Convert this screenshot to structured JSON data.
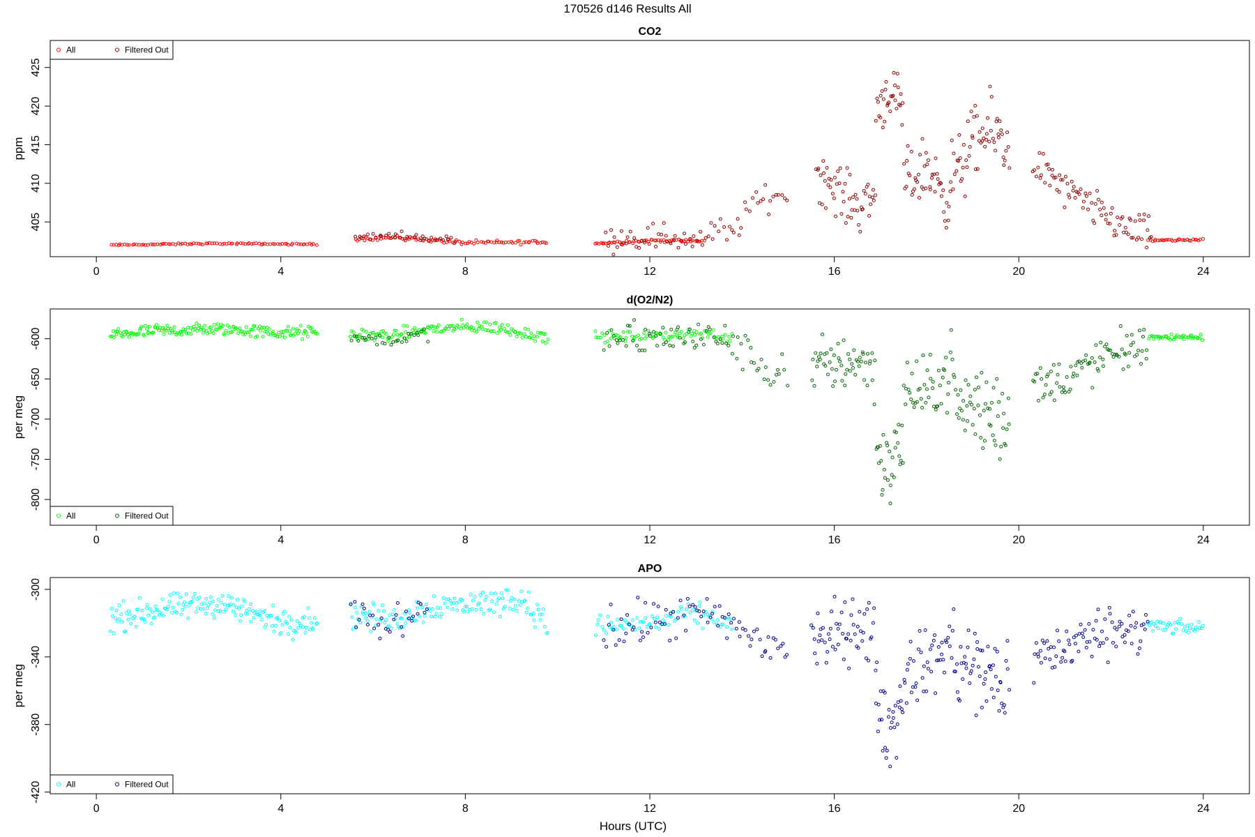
{
  "page_title": "170526   d146   Results All",
  "x_axis_label": "Hours (UTC)",
  "chart_data": [
    {
      "type": "scatter",
      "title": "CO2",
      "xlabel": "",
      "ylabel": "ppm",
      "xlim": [
        -1,
        25
      ],
      "ylim": [
        400.5,
        428.5
      ],
      "xticks": [
        0,
        4,
        8,
        12,
        16,
        20,
        24
      ],
      "yticks": [
        405,
        410,
        415,
        420,
        425
      ],
      "legend_position": "top-left",
      "series": [
        {
          "name": "All",
          "color": "#ff0000",
          "segments": [
            {
              "start": 0.3,
              "end": 4.8,
              "n": 90,
              "base": [
                [
                  0.3,
                  402.0
                ],
                [
                  2.5,
                  402.2
                ],
                [
                  4.8,
                  402.1
                ]
              ],
              "spread": 0.15
            },
            {
              "start": 5.6,
              "end": 9.8,
              "n": 90,
              "base": [
                [
                  5.6,
                  402.8
                ],
                [
                  6.5,
                  403.0
                ],
                [
                  8.0,
                  402.3
                ],
                [
                  9.8,
                  402.4
                ]
              ],
              "spread": 0.4
            },
            {
              "start": 10.8,
              "end": 13.2,
              "n": 60,
              "base": [
                [
                  10.8,
                  402.2
                ],
                [
                  12.0,
                  402.6
                ],
                [
                  13.2,
                  402.5
                ]
              ],
              "spread": 0.3
            },
            {
              "start": 22.8,
              "end": 24.0,
              "n": 30,
              "base": [
                [
                  22.8,
                  402.6
                ],
                [
                  24.0,
                  402.7
                ]
              ],
              "spread": 0.2
            }
          ]
        },
        {
          "name": "Filtered Out",
          "color": "#8b0000",
          "segments": [
            {
              "start": 5.6,
              "end": 7.8,
              "n": 35,
              "base": [
                [
                  5.6,
                  403.0
                ],
                [
                  6.5,
                  403.3
                ],
                [
                  7.8,
                  402.6
                ]
              ],
              "spread": 0.7
            },
            {
              "start": 11.0,
              "end": 15.0,
              "n": 70,
              "base": [
                [
                  11.0,
                  403.0
                ],
                [
                  12.0,
                  403.2
                ],
                [
                  13.0,
                  402.8
                ],
                [
                  13.8,
                  404.0
                ],
                [
                  14.3,
                  407.5
                ],
                [
                  15.0,
                  409.0
                ]
              ],
              "spread": 2.8
            },
            {
              "start": 15.6,
              "end": 16.9,
              "n": 55,
              "base": [
                [
                  15.6,
                  411.5
                ],
                [
                  16.0,
                  409.5
                ],
                [
                  16.5,
                  407.0
                ],
                [
                  16.9,
                  408.5
                ]
              ],
              "spread": 5.0
            },
            {
              "start": 16.9,
              "end": 17.5,
              "n": 30,
              "base": [
                [
                  16.9,
                  419.5
                ],
                [
                  17.2,
                  422.0
                ],
                [
                  17.5,
                  419.0
                ]
              ],
              "spread": 5.0
            },
            {
              "start": 17.5,
              "end": 18.5,
              "n": 45,
              "base": [
                [
                  17.5,
                  410.0
                ],
                [
                  18.0,
                  412.0
                ],
                [
                  18.5,
                  408.0
                ]
              ],
              "spread": 6.0
            },
            {
              "start": 18.5,
              "end": 19.8,
              "n": 60,
              "base": [
                [
                  18.5,
                  410.0
                ],
                [
                  19.0,
                  415.0
                ],
                [
                  19.5,
                  417.0
                ],
                [
                  19.8,
                  414.0
                ]
              ],
              "spread": 7.0
            },
            {
              "start": 20.3,
              "end": 22.9,
              "n": 85,
              "base": [
                [
                  20.3,
                  413.0
                ],
                [
                  21.0,
                  409.0
                ],
                [
                  21.8,
                  406.0
                ],
                [
                  22.4,
                  404.0
                ],
                [
                  22.9,
                  403.0
                ]
              ],
              "spread": 3.5
            }
          ]
        }
      ]
    },
    {
      "type": "scatter",
      "title": "d(O2/N2)",
      "xlabel": "",
      "ylabel": "per meg",
      "xlim": [
        -1,
        25
      ],
      "ylim": [
        -832,
        -563
      ],
      "xticks": [
        0,
        4,
        8,
        12,
        16,
        20,
        24
      ],
      "yticks": [
        -600,
        -650,
        -700,
        -750,
        -800
      ],
      "legend_position": "bottom-left",
      "series": [
        {
          "name": "All",
          "color": "#00ff00",
          "segments": [
            {
              "start": 0.3,
              "end": 4.8,
              "n": 180,
              "base": [
                [
                  0.3,
                  -595
                ],
                [
                  1.5,
                  -590
                ],
                [
                  2.8,
                  -588
                ],
                [
                  4.0,
                  -593
                ],
                [
                  4.8,
                  -592
                ]
              ],
              "spread": 12
            },
            {
              "start": 5.5,
              "end": 9.8,
              "n": 150,
              "base": [
                [
                  5.5,
                  -595
                ],
                [
                  6.5,
                  -596
                ],
                [
                  7.2,
                  -588
                ],
                [
                  8.5,
                  -585
                ],
                [
                  9.8,
                  -598
                ]
              ],
              "spread": 12
            },
            {
              "start": 10.8,
              "end": 13.8,
              "n": 80,
              "base": [
                [
                  10.8,
                  -598
                ],
                [
                  12.0,
                  -597
                ],
                [
                  13.0,
                  -593
                ],
                [
                  13.8,
                  -598
                ]
              ],
              "spread": 10
            },
            {
              "start": 22.8,
              "end": 24.0,
              "n": 40,
              "base": [
                [
                  22.8,
                  -597
                ],
                [
                  24.0,
                  -598
                ]
              ],
              "spread": 7
            }
          ]
        },
        {
          "name": "Filtered Out",
          "color": "#006400",
          "segments": [
            {
              "start": 5.5,
              "end": 7.2,
              "n": 30,
              "base": [
                [
                  5.5,
                  -598
                ],
                [
                  6.3,
                  -602
                ],
                [
                  7.2,
                  -595
                ]
              ],
              "spread": 12
            },
            {
              "start": 11.0,
              "end": 15.0,
              "n": 80,
              "base": [
                [
                  11.0,
                  -605
                ],
                [
                  12.0,
                  -600
                ],
                [
                  13.0,
                  -597
                ],
                [
                  13.8,
                  -605
                ],
                [
                  14.5,
                  -640
                ],
                [
                  15.0,
                  -640
                ]
              ],
              "spread": 35
            },
            {
              "start": 15.5,
              "end": 16.9,
              "n": 55,
              "base": [
                [
                  15.5,
                  -640
                ],
                [
                  16.0,
                  -630
                ],
                [
                  16.5,
                  -625
                ],
                [
                  16.9,
                  -640
                ]
              ],
              "spread": 55
            },
            {
              "start": 16.9,
              "end": 17.5,
              "n": 30,
              "base": [
                [
                  16.9,
                  -730
                ],
                [
                  17.2,
                  -770
                ],
                [
                  17.5,
                  -720
                ]
              ],
              "spread": 75
            },
            {
              "start": 17.5,
              "end": 18.6,
              "n": 45,
              "base": [
                [
                  17.5,
                  -660
                ],
                [
                  18.0,
                  -670
                ],
                [
                  18.6,
                  -630
                ]
              ],
              "spread": 60
            },
            {
              "start": 18.6,
              "end": 19.8,
              "n": 55,
              "base": [
                [
                  18.6,
                  -680
                ],
                [
                  19.2,
                  -690
                ],
                [
                  19.8,
                  -690
                ]
              ],
              "spread": 95
            },
            {
              "start": 20.3,
              "end": 22.8,
              "n": 85,
              "base": [
                [
                  20.3,
                  -660
                ],
                [
                  21.0,
                  -650
                ],
                [
                  21.8,
                  -625
                ],
                [
                  22.8,
                  -605
                ]
              ],
              "spread": 40
            }
          ]
        }
      ]
    },
    {
      "type": "scatter",
      "title": "APO",
      "xlabel": "",
      "ylabel": "per meg",
      "xlim": [
        -1,
        25
      ],
      "ylim": [
        -421,
        -293
      ],
      "xticks": [
        0,
        4,
        8,
        12,
        16,
        20,
        24
      ],
      "yticks": [
        -300,
        -340,
        -380,
        -420
      ],
      "legend_position": "bottom-left",
      "series": [
        {
          "name": "All",
          "color": "#00ffff",
          "segments": [
            {
              "start": 0.3,
              "end": 4.8,
              "n": 180,
              "base": [
                [
                  0.3,
                  -318
                ],
                [
                  1.4,
                  -312
                ],
                [
                  2.7,
                  -308
                ],
                [
                  4.0,
                  -320
                ],
                [
                  4.8,
                  -318
                ]
              ],
              "spread": 12
            },
            {
              "start": 5.5,
              "end": 9.8,
              "n": 150,
              "base": [
                [
                  5.5,
                  -315
                ],
                [
                  6.5,
                  -318
                ],
                [
                  7.2,
                  -310
                ],
                [
                  8.5,
                  -308
                ],
                [
                  9.2,
                  -305
                ],
                [
                  9.8,
                  -322
                ]
              ],
              "spread": 12
            },
            {
              "start": 10.8,
              "end": 13.8,
              "n": 80,
              "base": [
                [
                  10.8,
                  -322
                ],
                [
                  12.0,
                  -320
                ],
                [
                  13.0,
                  -315
                ],
                [
                  13.8,
                  -320
                ]
              ],
              "spread": 10
            },
            {
              "start": 22.8,
              "end": 24.0,
              "n": 40,
              "base": [
                [
                  22.8,
                  -322
                ],
                [
                  24.0,
                  -323
                ]
              ],
              "spread": 6
            }
          ]
        },
        {
          "name": "Filtered Out",
          "color": "#00008b",
          "segments": [
            {
              "start": 5.5,
              "end": 7.2,
              "n": 30,
              "base": [
                [
                  5.5,
                  -312
                ],
                [
                  6.3,
                  -322
                ],
                [
                  7.2,
                  -308
                ]
              ],
              "spread": 14
            },
            {
              "start": 11.0,
              "end": 15.0,
              "n": 80,
              "base": [
                [
                  11.0,
                  -325
                ],
                [
                  12.0,
                  -320
                ],
                [
                  13.0,
                  -315
                ],
                [
                  13.8,
                  -322
                ],
                [
                  14.5,
                  -332
                ],
                [
                  15.0,
                  -335
                ]
              ],
              "spread": 20
            },
            {
              "start": 15.5,
              "end": 16.9,
              "n": 55,
              "base": [
                [
                  15.5,
                  -330
                ],
                [
                  16.0,
                  -328
                ],
                [
                  16.5,
                  -320
                ],
                [
                  16.9,
                  -330
                ]
              ],
              "spread": 30
            },
            {
              "start": 16.9,
              "end": 17.5,
              "n": 30,
              "base": [
                [
                  16.9,
                  -365
                ],
                [
                  17.2,
                  -385
                ],
                [
                  17.5,
                  -365
                ]
              ],
              "spread": 35
            },
            {
              "start": 17.5,
              "end": 18.6,
              "n": 45,
              "base": [
                [
                  17.5,
                  -350
                ],
                [
                  18.0,
                  -345
                ],
                [
                  18.6,
                  -330
                ]
              ],
              "spread": 30
            },
            {
              "start": 18.6,
              "end": 19.8,
              "n": 55,
              "base": [
                [
                  18.6,
                  -345
                ],
                [
                  19.2,
                  -350
                ],
                [
                  19.8,
                  -355
                ]
              ],
              "spread": 45
            },
            {
              "start": 20.3,
              "end": 22.8,
              "n": 85,
              "base": [
                [
                  20.3,
                  -340
                ],
                [
                  21.0,
                  -335
                ],
                [
                  21.8,
                  -325
                ],
                [
                  22.8,
                  -320
                ]
              ],
              "spread": 22
            }
          ]
        }
      ]
    }
  ]
}
